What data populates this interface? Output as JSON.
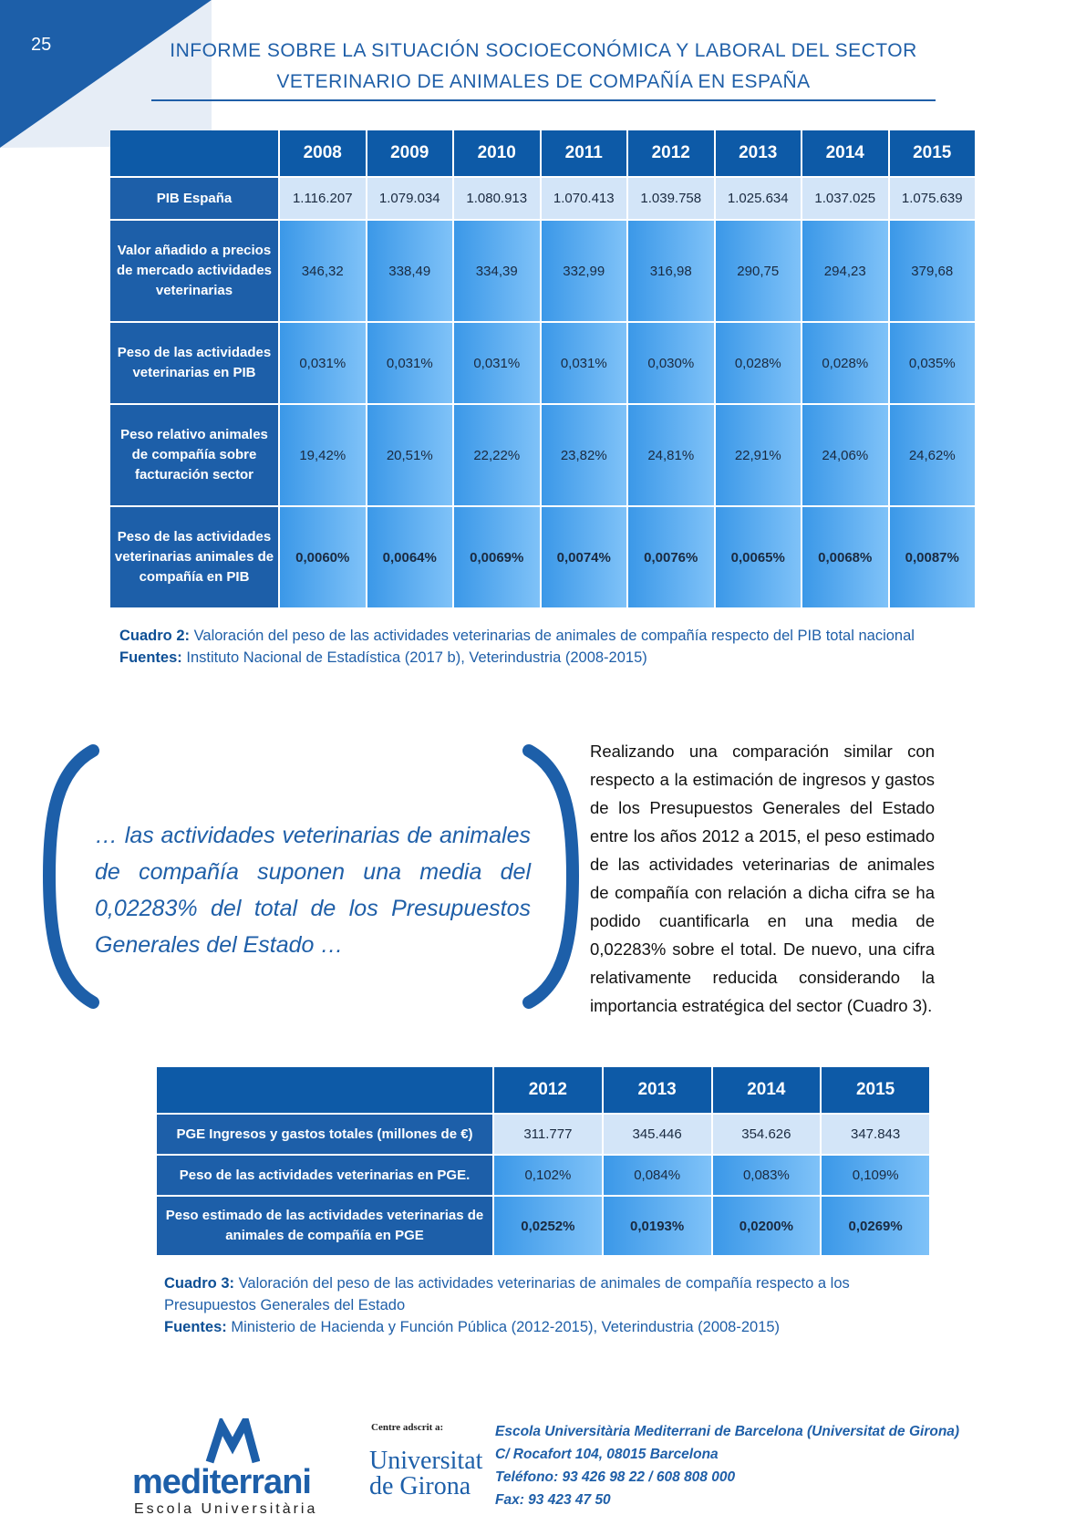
{
  "page_number": "25",
  "header": {
    "title_lines": [
      "INFORME SOBRE LA SITUACIÓN SOCIOECONÓMICA Y LABORAL DEL SECTOR",
      "VETERINARIO DE ANIMALES DE COMPAÑÍA EN ESPAÑA"
    ]
  },
  "table_1": {
    "columns": [
      "2008",
      "2009",
      "2010",
      "2011",
      "2012",
      "2013",
      "2014",
      "2015"
    ],
    "rows": [
      {
        "label": "PIB España",
        "values": [
          "1.116.207",
          "1.079.034",
          "1.080.913",
          "1.070.413",
          "1.039.758",
          "1.025.634",
          "1.037.025",
          "1.075.639"
        ]
      },
      {
        "label": "Valor añadido a precios de mercado actividades veterinarias",
        "values": [
          "346,32",
          "338,49",
          "334,39",
          "332,99",
          "316,98",
          "290,75",
          "294,23",
          "379,68"
        ]
      },
      {
        "label": "Peso de las actividades veterinarias en PIB",
        "values": [
          "0,031%",
          "0,031%",
          "0,031%",
          "0,031%",
          "0,030%",
          "0,028%",
          "0,028%",
          "0,035%"
        ]
      },
      {
        "label": "Peso relativo animales de compañía sobre facturación sector",
        "values": [
          "19,42%",
          "20,51%",
          "22,22%",
          "23,82%",
          "24,81%",
          "22,91%",
          "24,06%",
          "24,62%"
        ]
      },
      {
        "label": "Peso de las actividades veterinarias animales de compañía en PIB",
        "values": [
          "0,0060%",
          "0,0064%",
          "0,0069%",
          "0,0074%",
          "0,0076%",
          "0,0065%",
          "0,0068%",
          "0,0087%"
        ]
      }
    ]
  },
  "caption_1": {
    "label": "Cuadro 2:",
    "text": "Valoración del peso de las actividades veterinarias de animales de compañía respecto del PIB total nacional",
    "sources_label": "Fuentes:",
    "sources": "Instituto Nacional de Estadística (2017 b), Veterindustria (2008-2015)"
  },
  "quote": "… las actividades veterinarias de animales de compañía suponen una media del 0,02283% del total de los Presupuestos Generales del Estado …",
  "paragraph": "Realizando una comparación similar con respecto a la estimación de ingresos y gastos de los Presupuestos Generales del Estado entre los años 2012 a 2015, el peso estimado de las actividades veterinarias de animales de compañía con relación a dicha cifra se ha podido cuantificarla en una media de 0,02283% sobre el total. De nuevo, una cifra relativamente reducida considerando la importancia estratégica del sector (Cuadro 3).",
  "table_2": {
    "columns": [
      "2012",
      "2013",
      "2014",
      "2015"
    ],
    "rows": [
      {
        "label": "PGE Ingresos y gastos totales (millones de €)",
        "values": [
          "311.777",
          "345.446",
          "354.626",
          "347.843"
        ]
      },
      {
        "label": "Peso de las actividades veterinarias en PGE.",
        "values": [
          "0,102%",
          "0,084%",
          "0,083%",
          "0,109%"
        ]
      },
      {
        "label": "Peso estimado de las actividades veterinarias de animales de compañía en PGE",
        "values": [
          "0,0252%",
          "0,0193%",
          "0,0200%",
          "0,0269%"
        ]
      }
    ]
  },
  "caption_2": {
    "label": "Cuadro 3:",
    "text": "Valoración del peso de las actividades veterinarias de animales de compañía respecto a los Presupuestos Generales del Estado",
    "sources_label": "Fuentes:",
    "sources": "Ministerio de Hacienda y Función Pública (2012-2015), Veterindustria (2008-2015)"
  },
  "footer": {
    "logo_name": "mediterrani",
    "logo_subtitle": "Escola Universitària",
    "adscrit": "Centre adscrit a:",
    "university_lines": [
      "Universitat",
      "de Girona"
    ],
    "address_lines": [
      "Escola Universitària Mediterrani de Barcelona (Universitat de Girona)",
      "C/ Rocafort 104, 08015 Barcelona",
      "Teléfono: 93 426 98 22 / 608 808 000",
      "Fax: 93 423 47 50"
    ]
  }
}
